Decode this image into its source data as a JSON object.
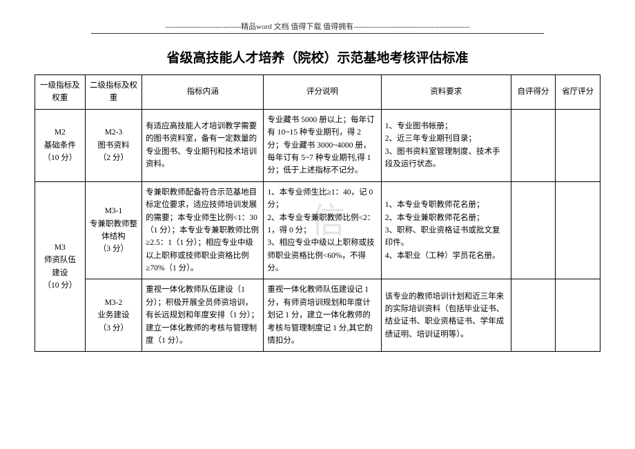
{
  "header": {
    "line": "------------------------------精品word 文档 值得下载 值得拥有----------------------------------------------"
  },
  "title": "省级高技能人才培养（院校）示范基地考核评估标准",
  "watermark": "信",
  "columns": {
    "c1": "一级指标及权重",
    "c2": "二级指标及权重",
    "c3": "指标内涵",
    "c4": "评分说明",
    "c5": "资料要求",
    "c6": "自评得分",
    "c7": "省厅评分"
  },
  "rows": {
    "r1": {
      "col1": "M2\n基础条件\n（10 分）",
      "col2": "M2-3\n图书资料\n（2 分）",
      "col3": "有适应高技能人才培训教学需要的图书资料室，备有一定数量的专业图书、专业期刊和技术培训资料。",
      "col4": "专业藏书 5000 册以上；每年订有 10~15 种专业期刊，得 2 分；专业藏书 3000~4000 册，每年订有 5~7 种专业期刊,得 1 分；低于上述指标不记分。",
      "col5": "1、专业图书帐册；\n2、近三年专业期刊目录；\n3、图书资料室管理制度、技术手段及运行状态。"
    },
    "r2": {
      "col1": "M3\n师资队伍\n建设\n（10 分）",
      "col2": "M3-1\n专兼职教师整体结构\n（3 分）",
      "col3": "专兼职教师配备符合示范基地目标定位要求，适应技师培训发展的需要；本专业师生比例<1：30（1 分）；本专业专兼职教师比例≥2.5：1（1 分）；相应专业中级以上职称或技师职业资格比例≥70%（1 分）。",
      "col4": "1、本专业师生比≥1：40，记 0 分；\n2、本专业专兼职教师比例<2：1，得 0 分；\n3、相应专业中级以上职称或技师职业资格比例<60%，不得分。",
      "col5": "1、本专业专职教师花名册；\n2、本专业兼职教师花名册；\n3、职称、职业资格证书或批文复印件。\n4、本职业（工种）学员花名册。"
    },
    "r3": {
      "col2": "M3-2\n业务建设\n（3 分）",
      "col3": "重视一体化教师队伍建设（1 分）；积极开展全员师资培训，有长远规划和年度安排（1 分）；建立一体化教师的考核与管理制度（1 分）。",
      "col4": "重视一体化教师队伍建设记 1 分，有师资培训规划和年度计划记 1 分，建立一体化教师的考核与管理制度记 1 分,其它酌情扣分。",
      "col5": "该专业的教师培训计划和近三年来的实际培训资料（包括毕业证书、结业证书、职业资格证书、学年成绩证明、培训证明等）。"
    }
  }
}
